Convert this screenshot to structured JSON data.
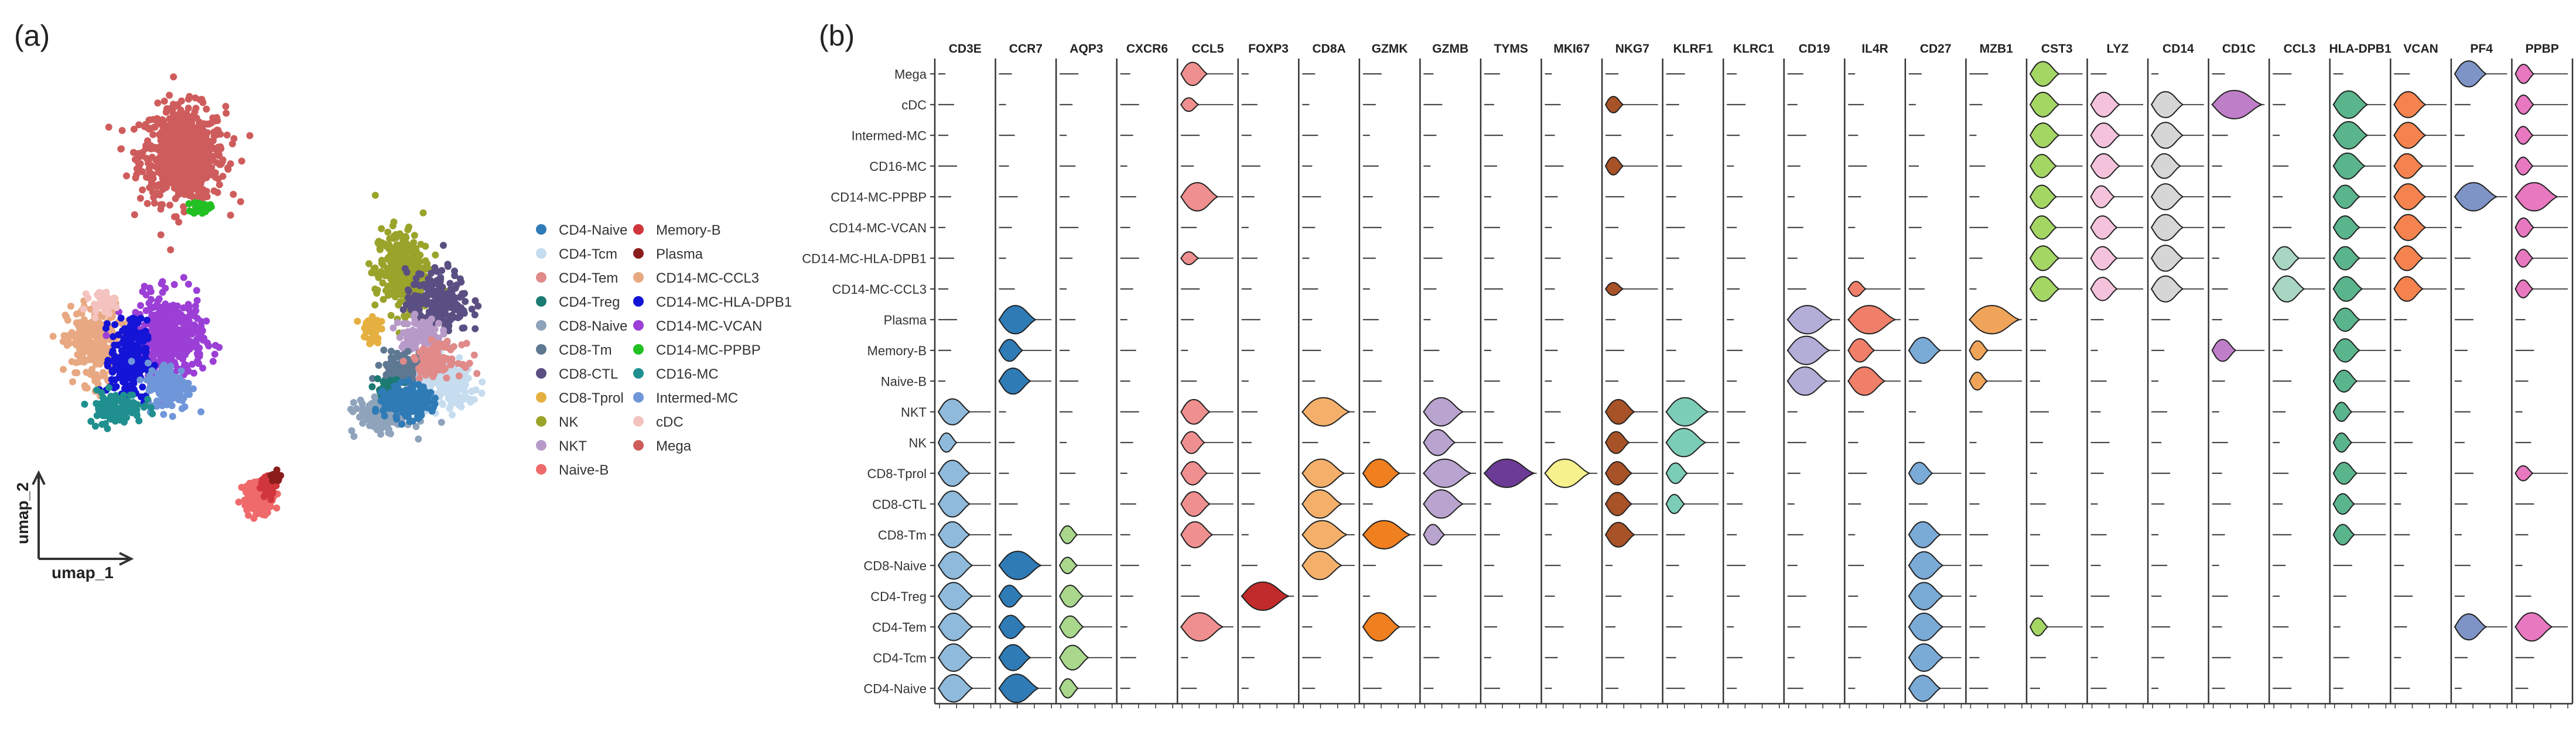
{
  "panel_labels": {
    "a": "(a)",
    "b": "(b)"
  },
  "chart_data": [
    {
      "type": "scatter",
      "panel": "(a)",
      "subtype": "umap-embedding",
      "xlabel": "umap_1",
      "ylabel": "umap_2",
      "legend_position": "right",
      "legend": [
        {
          "name": "CD4-Naive",
          "color": "#2f7bb6"
        },
        {
          "name": "CD4-Tcm",
          "color": "#c6dcef"
        },
        {
          "name": "CD4-Tem",
          "color": "#e08a8a"
        },
        {
          "name": "CD4-Treg",
          "color": "#1b7a72"
        },
        {
          "name": "CD8-Naive",
          "color": "#8fa3bb"
        },
        {
          "name": "CD8-Tm",
          "color": "#5f7892"
        },
        {
          "name": "CD8-CTL",
          "color": "#5a4f82"
        },
        {
          "name": "CD8-Tprol",
          "color": "#e5b040"
        },
        {
          "name": "NK",
          "color": "#9aa32a"
        },
        {
          "name": "NKT",
          "color": "#b79ac8"
        },
        {
          "name": "Naive-B",
          "color": "#ef6a6a"
        },
        {
          "name": "Memory-B",
          "color": "#d1363c"
        },
        {
          "name": "Plasma",
          "color": "#8a1c1c"
        },
        {
          "name": "CD14-MC-CCL3",
          "color": "#e8a882"
        },
        {
          "name": "CD14-MC-HLA-DPB1",
          "color": "#1414d6"
        },
        {
          "name": "CD14-MC-VCAN",
          "color": "#9b3fd6"
        },
        {
          "name": "CD14-MC-PPBP",
          "color": "#22c022"
        },
        {
          "name": "CD16-MC",
          "color": "#1f8f8f"
        },
        {
          "name": "Intermed-MC",
          "color": "#6f96d8"
        },
        {
          "name": "cDC",
          "color": "#f4c3c0"
        },
        {
          "name": "Mega",
          "color": "#cf5c5c"
        }
      ],
      "clusters": [
        {
          "name": "Mega",
          "center": [
            3.3,
            7.4
          ],
          "spread": [
            0.95,
            0.9
          ],
          "n": 700
        },
        {
          "name": "CD14-MC-PPBP",
          "center": [
            3.7,
            6.4
          ],
          "spread": [
            0.2,
            0.12
          ],
          "n": 40
        },
        {
          "name": "CD14-MC-CCL3",
          "center": [
            1.3,
            3.8
          ],
          "spread": [
            0.6,
            0.75
          ],
          "n": 260
        },
        {
          "name": "CD14-MC-VCAN",
          "center": [
            3.0,
            3.9
          ],
          "spread": [
            0.75,
            0.8
          ],
          "n": 420
        },
        {
          "name": "CD14-MC-HLA-DPB1",
          "center": [
            2.1,
            3.5
          ],
          "spread": [
            0.4,
            0.75
          ],
          "n": 260
        },
        {
          "name": "Intermed-MC",
          "center": [
            3.0,
            3.0
          ],
          "spread": [
            0.5,
            0.45
          ],
          "n": 160
        },
        {
          "name": "CD16-MC",
          "center": [
            1.8,
            2.6
          ],
          "spread": [
            0.6,
            0.3
          ],
          "n": 120
        },
        {
          "name": "cDC",
          "center": [
            1.5,
            4.6
          ],
          "spread": [
            0.3,
            0.2
          ],
          "n": 40
        },
        {
          "name": "NK",
          "center": [
            8.2,
            5.2
          ],
          "spread": [
            0.6,
            0.8
          ],
          "n": 280
        },
        {
          "name": "CD8-CTL",
          "center": [
            9.0,
            4.6
          ],
          "spread": [
            0.7,
            0.6
          ],
          "n": 200
        },
        {
          "name": "NKT",
          "center": [
            8.6,
            4.0
          ],
          "spread": [
            0.5,
            0.3
          ],
          "n": 90
        },
        {
          "name": "CD8-Tprol",
          "center": [
            7.5,
            4.1
          ],
          "spread": [
            0.2,
            0.3
          ],
          "n": 50
        },
        {
          "name": "CD8-Tm",
          "center": [
            8.4,
            3.3
          ],
          "spread": [
            0.6,
            0.35
          ],
          "n": 160
        },
        {
          "name": "CD4-Tcm",
          "center": [
            9.2,
            3.0
          ],
          "spread": [
            0.7,
            0.4
          ],
          "n": 220
        },
        {
          "name": "CD4-Tem",
          "center": [
            9.0,
            3.5
          ],
          "spread": [
            0.55,
            0.3
          ],
          "n": 90
        },
        {
          "name": "CD4-Treg",
          "center": [
            7.9,
            2.9
          ],
          "spread": [
            0.3,
            0.25
          ],
          "n": 50
        },
        {
          "name": "CD8-Naive",
          "center": [
            7.8,
            2.45
          ],
          "spread": [
            0.6,
            0.3
          ],
          "n": 200
        },
        {
          "name": "CD4-Naive",
          "center": [
            8.3,
            2.7
          ],
          "spread": [
            0.5,
            0.3
          ],
          "n": 260
        },
        {
          "name": "Naive-B",
          "center": [
            5.0,
            0.9
          ],
          "spread": [
            0.35,
            0.3
          ],
          "n": 160
        },
        {
          "name": "Memory-B",
          "center": [
            5.2,
            1.1
          ],
          "spread": [
            0.2,
            0.2
          ],
          "n": 40
        },
        {
          "name": "Plasma",
          "center": [
            5.4,
            1.3
          ],
          "spread": [
            0.12,
            0.12
          ],
          "n": 15
        }
      ]
    },
    {
      "type": "violin",
      "panel": "(b)",
      "genes": [
        "CD3E",
        "CCR7",
        "AQP3",
        "CXCR6",
        "CCL5",
        "FOXP3",
        "CD8A",
        "GZMK",
        "GZMB",
        "TYMS",
        "MKI67",
        "NKG7",
        "KLRF1",
        "KLRC1",
        "CD19",
        "IL4R",
        "CD27",
        "MZB1",
        "CST3",
        "LYZ",
        "CD14",
        "CD1C",
        "CCL3",
        "HLA-DPB1",
        "VCAN",
        "PF4",
        "PPBP"
      ],
      "gene_colors": [
        "#8fbadb",
        "#2f7bb6",
        "#a9d78c",
        "#7fc5c2",
        "#f08f8f",
        "#c22b2b",
        "#f4b06b",
        "#ef7f1f",
        "#b9a3cf",
        "#6c3b96",
        "#f6f08d",
        "#a85228",
        "#7ccdb8",
        "#b8b8b8",
        "#b3aed8",
        "#f07f69",
        "#7aaad6",
        "#f0a45a",
        "#a4d664",
        "#f5c2dc",
        "#d6d6d6",
        "#bf7fc8",
        "#a8d6c2",
        "#5ab48c",
        "#f5834f",
        "#7f94c6",
        "#e878c0"
      ],
      "cell_types": [
        "Mega",
        "cDC",
        "Intermed-MC",
        "CD16-MC",
        "CD14-MC-PPBP",
        "CD14-MC-VCAN",
        "CD14-MC-HLA-DPB1",
        "CD14-MC-CCL3",
        "Plasma",
        "Memory-B",
        "Naive-B",
        "NKT",
        "NK",
        "CD8-Tprol",
        "CD8-CTL",
        "CD8-Tm",
        "CD8-Naive",
        "CD4-Treg",
        "CD4-Tem",
        "CD4-Tcm",
        "CD4-Naive"
      ],
      "expression_scale": [
        0,
        1
      ],
      "expression": {
        "CD3E": {
          "NKT": 0.6,
          "NK": 0.35,
          "CD8-Tprol": 0.6,
          "CD8-CTL": 0.6,
          "CD8-Tm": 0.6,
          "CD8-Naive": 0.65,
          "CD4-Treg": 0.65,
          "CD4-Tem": 0.65,
          "CD4-Tcm": 0.65,
          "CD4-Naive": 0.65
        },
        "CCR7": {
          "Plasma": 0.7,
          "Memory-B": 0.45,
          "Naive-B": 0.6,
          "CD8-Naive": 0.8,
          "CD4-Treg": 0.45,
          "CD4-Tem": 0.5,
          "CD4-Tcm": 0.6,
          "CD4-Naive": 0.75
        },
        "AQP3": {
          "CD8-Tm": 0.3,
          "CD8-Naive": 0.25,
          "CD4-Treg": 0.45,
          "CD4-Tem": 0.45,
          "CD4-Tcm": 0.55,
          "CD4-Naive": 0.35
        },
        "CXCR6": {},
        "CCL5": {
          "Mega": 0.5,
          "cDC": 0.15,
          "CD14-MC-PPBP": 0.7,
          "CD14-MC-HLA-DPB1": 0.12,
          "NKT": 0.55,
          "NK": 0.45,
          "CD8-Tprol": 0.5,
          "CD8-CTL": 0.55,
          "CD8-Tm": 0.6,
          "CD4-Tem": 0.8
        },
        "FOXP3": {
          "CD4-Treg": 0.9
        },
        "CD8A": {
          "NKT": 0.9,
          "CD8-Tprol": 0.8,
          "CD8-CTL": 0.75,
          "CD8-Tm": 0.85,
          "CD8-Naive": 0.75
        },
        "GZMK": {
          "CD8-Tprol": 0.7,
          "CD8-Tm": 0.9,
          "CD4-Tem": 0.7
        },
        "GZMB": {
          "NKT": 0.75,
          "NK": 0.6,
          "CD8-Tprol": 0.9,
          "CD8-CTL": 0.75,
          "CD8-Tm": 0.4
        },
        "TYMS": {
          "CD8-Tprol": 0.95
        },
        "MKI67": {
          "CD8-Tprol": 0.85
        },
        "NKG7": {
          "cDC": 0.25,
          "CD16-MC": 0.3,
          "CD14-MC-CCL3": 0.12,
          "NKT": 0.55,
          "NK": 0.45,
          "CD8-Tprol": 0.5,
          "CD8-CTL": 0.5,
          "CD8-Tm": 0.55
        },
        "KLRF1": {
          "NKT": 0.8,
          "NK": 0.75,
          "CD8-Tprol": 0.4,
          "CD8-CTL": 0.35
        },
        "KLRC1": {},
        "CD19": {
          "Plasma": 0.85,
          "Memory-B": 0.8,
          "Naive-B": 0.75
        },
        "IL4R": {
          "CD14-MC-CCL3": 0.2,
          "Plasma": 0.9,
          "Memory-B": 0.5,
          "Naive-B": 0.7
        },
        "CD27": {
          "Memory-B": 0.6,
          "CD8-Tprol": 0.45,
          "CD8-Tm": 0.6,
          "CD8-Naive": 0.65,
          "CD4-Treg": 0.65,
          "CD4-Tem": 0.65,
          "CD4-Tcm": 0.65,
          "CD4-Naive": 0.6
        },
        "MZB1": {
          "Plasma": 0.95,
          "Memory-B": 0.35,
          "Naive-B": 0.3
        },
        "CST3": {
          "Mega": 0.55,
          "cDC": 0.55,
          "Intermed-MC": 0.55,
          "CD16-MC": 0.5,
          "CD14-MC-PPBP": 0.5,
          "CD14-MC-VCAN": 0.5,
          "CD14-MC-HLA-DPB1": 0.55,
          "CD14-MC-CCL3": 0.55,
          "CD4-Tem": 0.3
        },
        "LYZ": {
          "cDC": 0.55,
          "Intermed-MC": 0.55,
          "CD16-MC": 0.55,
          "CD14-MC-PPBP": 0.45,
          "CD14-MC-VCAN": 0.5,
          "CD14-MC-HLA-DPB1": 0.5,
          "CD14-MC-CCL3": 0.5
        },
        "CD14": {
          "cDC": 0.6,
          "Intermed-MC": 0.6,
          "CD16-MC": 0.55,
          "CD14-MC-PPBP": 0.6,
          "CD14-MC-VCAN": 0.6,
          "CD14-MC-HLA-DPB1": 0.6,
          "CD14-MC-CCL3": 0.6
        },
        "CD1C": {
          "cDC": 0.95,
          "Memory-B": 0.45
        },
        "CCL3": {
          "CD14-MC-HLA-DPB1": 0.5,
          "CD14-MC-CCL3": 0.6
        },
        "HLA-DPB1": {
          "cDC": 0.65,
          "Intermed-MC": 0.65,
          "CD16-MC": 0.6,
          "CD14-MC-PPBP": 0.5,
          "CD14-MC-VCAN": 0.5,
          "CD14-MC-HLA-DPB1": 0.5,
          "CD14-MC-CCL3": 0.55,
          "Plasma": 0.5,
          "Memory-B": 0.5,
          "Naive-B": 0.45,
          "NKT": 0.35,
          "NK": 0.35,
          "CD8-Tprol": 0.45,
          "CD8-CTL": 0.4,
          "CD8-Tm": 0.4
        },
        "VCAN": {
          "cDC": 0.6,
          "Intermed-MC": 0.6,
          "CD16-MC": 0.55,
          "CD14-MC-PPBP": 0.6,
          "CD14-MC-VCAN": 0.6,
          "CD14-MC-HLA-DPB1": 0.55,
          "CD14-MC-CCL3": 0.55
        },
        "PF4": {
          "Mega": 0.6,
          "CD14-MC-PPBP": 0.8,
          "CD4-Tem": 0.6
        },
        "PPBP": {
          "Mega": 0.35,
          "cDC": 0.35,
          "Intermed-MC": 0.3,
          "CD16-MC": 0.3,
          "CD14-MC-PPBP": 0.8,
          "CD14-MC-VCAN": 0.35,
          "CD14-MC-HLA-DPB1": 0.3,
          "CD14-MC-CCL3": 0.3,
          "CD8-Tprol": 0.2,
          "CD4-Tem": 0.7
        }
      }
    }
  ]
}
